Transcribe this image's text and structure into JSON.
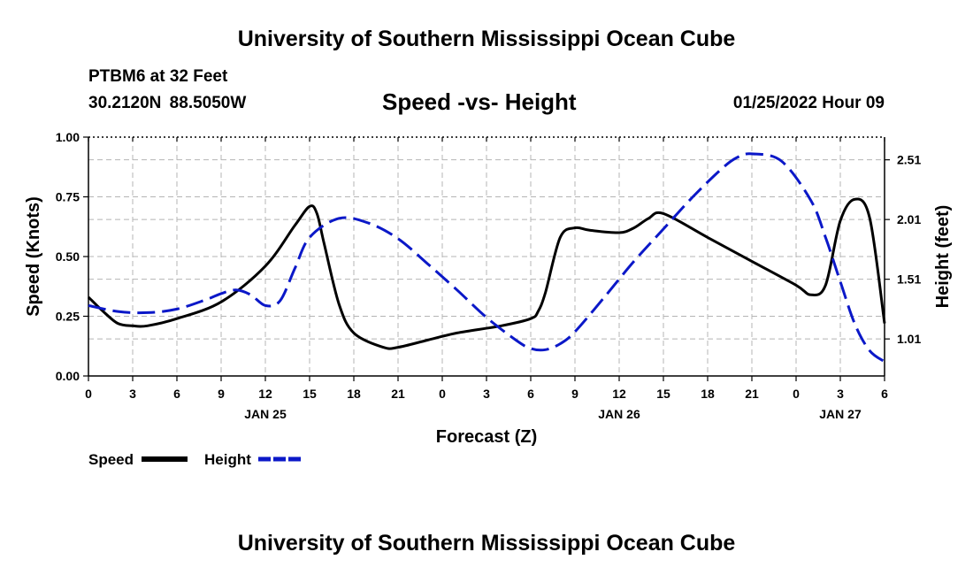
{
  "header": {
    "title": "University of Southern Mississippi Ocean Cube",
    "station": "PTBM6 at 32 Feet",
    "coordinates": "30.2120N  88.5050W",
    "subtitle": "Speed -vs- Height",
    "datetime": "01/25/2022 Hour 09"
  },
  "footer": {
    "title": "University of Southern Mississippi Ocean Cube"
  },
  "colors": {
    "speed": "#000000",
    "height": "#0b18c8",
    "grid": "#b4b4b4"
  },
  "chart_data": {
    "type": "line",
    "title": "Speed -vs- Height",
    "xlabel": "Forecast (Z)",
    "ylabel": "Speed (Knots)",
    "y2label": "Height (feet)",
    "xlim": [
      0,
      54
    ],
    "ylim": [
      0,
      1
    ],
    "y2lim": [
      0.7,
      2.7
    ],
    "x_ticks": [
      0,
      3,
      6,
      9,
      12,
      15,
      18,
      21,
      24,
      27,
      30,
      33,
      36,
      39,
      42,
      45,
      48,
      51,
      54
    ],
    "x_tick_labels": [
      "0",
      "3",
      "6",
      "9",
      "12",
      "15",
      "18",
      "21",
      "0",
      "3",
      "6",
      "9",
      "12",
      "15",
      "18",
      "21",
      "0",
      "3",
      "6"
    ],
    "y_ticks": [
      0,
      0.25,
      0.5,
      0.75,
      1.0
    ],
    "y_tick_labels": [
      "0.00",
      "0.25",
      "0.50",
      "0.75",
      "1.00"
    ],
    "y2_ticks": [
      1.01,
      1.51,
      2.01,
      2.51
    ],
    "y2_tick_labels": [
      "1.01",
      "1.51",
      "2.01",
      "2.51"
    ],
    "date_labels": [
      {
        "x": 12,
        "label": "JAN 25"
      },
      {
        "x": 36,
        "label": "JAN 26"
      },
      {
        "x": 51,
        "label": "JAN 27"
      }
    ],
    "grid": true,
    "series": [
      {
        "name": "Speed",
        "axis": "left",
        "style": "solid",
        "x": [
          0,
          1,
          2,
          3,
          4,
          6,
          9,
          12,
          14,
          15,
          15.5,
          16,
          17,
          18,
          20,
          21,
          23,
          25,
          28,
          30,
          30.5,
          31,
          32,
          33,
          34,
          36,
          37,
          38,
          39,
          42,
          45,
          48,
          49,
          50,
          51,
          52,
          53,
          54
        ],
        "values": [
          0.33,
          0.27,
          0.22,
          0.21,
          0.21,
          0.24,
          0.31,
          0.46,
          0.63,
          0.71,
          0.68,
          0.55,
          0.3,
          0.18,
          0.12,
          0.12,
          0.15,
          0.18,
          0.21,
          0.24,
          0.27,
          0.35,
          0.58,
          0.62,
          0.61,
          0.6,
          0.62,
          0.66,
          0.68,
          0.58,
          0.48,
          0.38,
          0.34,
          0.38,
          0.65,
          0.74,
          0.66,
          0.22
        ]
      },
      {
        "name": "Height",
        "axis": "right",
        "style": "dashed",
        "x": [
          0,
          2,
          4,
          6,
          8,
          9,
          10,
          11,
          12,
          13,
          14,
          15,
          17,
          19,
          21,
          23,
          25,
          27,
          29,
          30,
          31,
          32,
          33,
          35,
          37,
          39,
          41,
          43,
          44,
          45,
          47,
          49,
          50,
          51,
          52,
          53,
          54
        ],
        "values": [
          1.29,
          1.24,
          1.23,
          1.26,
          1.34,
          1.39,
          1.42,
          1.38,
          1.29,
          1.33,
          1.6,
          1.86,
          2.02,
          1.98,
          1.85,
          1.64,
          1.42,
          1.19,
          1.0,
          0.93,
          0.92,
          0.97,
          1.07,
          1.36,
          1.66,
          1.93,
          2.2,
          2.44,
          2.53,
          2.56,
          2.5,
          2.17,
          1.86,
          1.49,
          1.13,
          0.91,
          0.82
        ]
      }
    ]
  },
  "legend": {
    "speed_label": "Speed",
    "height_label": "Height"
  }
}
